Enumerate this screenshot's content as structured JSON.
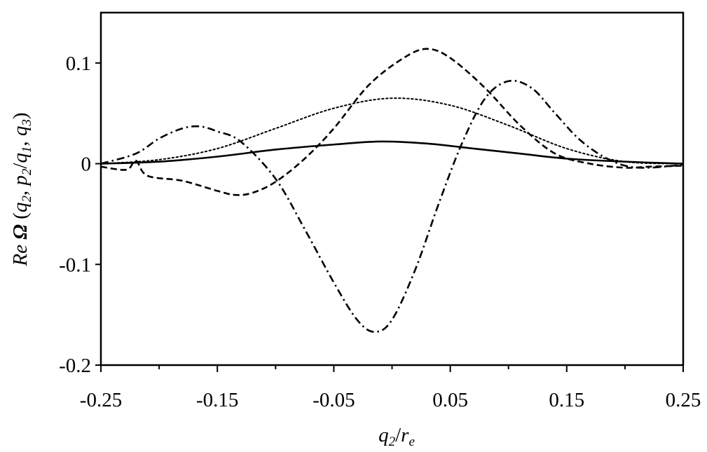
{
  "chart_data": {
    "type": "line",
    "title": "",
    "xlabel": {
      "base": "q",
      "sub": "2",
      "slash": "/",
      "base2": "r",
      "sub2": "e"
    },
    "ylabel": {
      "prefix": "Re ",
      "omega": "Ω",
      "open": " (",
      "q": "q",
      "q_sub": "2",
      "comma1": ", ",
      "p": "p",
      "p_sub": "2",
      "slash": "/",
      "q1": "q",
      "q1_sub": "1",
      "comma2": ", ",
      "q3": "q",
      "q3_sub": "3",
      "close": ")"
    },
    "xlim": [
      -0.25,
      0.25
    ],
    "ylim": [
      -0.2,
      0.15
    ],
    "x_ticks": [
      -0.25,
      -0.15,
      -0.05,
      0.05,
      0.15,
      0.25
    ],
    "x_tick_labels": [
      "-0.25",
      "-0.15",
      "-0.05",
      "0.05",
      "0.15",
      "0.25"
    ],
    "x_minor_ticks": [
      -0.2,
      -0.1,
      0.0,
      0.1,
      0.2
    ],
    "y_ticks": [
      -0.2,
      -0.1,
      0,
      0.1
    ],
    "y_tick_labels": [
      "-0.2",
      "-0.1",
      "0",
      "0.1"
    ],
    "grid": false,
    "legend": "none",
    "series": [
      {
        "style": "solid",
        "points": [
          [
            -0.25,
            0
          ],
          [
            -0.2,
            0.002
          ],
          [
            -0.15,
            0.007
          ],
          [
            -0.1,
            0.014
          ],
          [
            -0.05,
            0.019
          ],
          [
            -0.01,
            0.022
          ],
          [
            0.03,
            0.02
          ],
          [
            0.07,
            0.015
          ],
          [
            0.11,
            0.01
          ],
          [
            0.15,
            0.005
          ],
          [
            0.2,
            0.002
          ],
          [
            0.25,
            0
          ]
        ]
      },
      {
        "style": "dotted",
        "points": [
          [
            -0.25,
            0
          ],
          [
            -0.2,
            0.004
          ],
          [
            -0.15,
            0.015
          ],
          [
            -0.1,
            0.035
          ],
          [
            -0.05,
            0.055
          ],
          [
            0,
            0.065
          ],
          [
            0.05,
            0.058
          ],
          [
            0.1,
            0.038
          ],
          [
            0.15,
            0.015
          ],
          [
            0.2,
            0.002
          ],
          [
            0.25,
            0
          ]
        ]
      },
      {
        "style": "dashed",
        "points": [
          [
            -0.25,
            -0.003
          ],
          [
            -0.228,
            -0.006
          ],
          [
            -0.22,
            0.003
          ],
          [
            -0.21,
            -0.012
          ],
          [
            -0.18,
            -0.017
          ],
          [
            -0.15,
            -0.027
          ],
          [
            -0.135,
            -0.031
          ],
          [
            -0.12,
            -0.029
          ],
          [
            -0.1,
            -0.018
          ],
          [
            -0.075,
            0.005
          ],
          [
            -0.05,
            0.035
          ],
          [
            -0.02,
            0.078
          ],
          [
            0.01,
            0.105
          ],
          [
            0.03,
            0.114
          ],
          [
            0.05,
            0.105
          ],
          [
            0.08,
            0.075
          ],
          [
            0.11,
            0.038
          ],
          [
            0.14,
            0.01
          ],
          [
            0.17,
            0
          ],
          [
            0.2,
            -0.004
          ],
          [
            0.22,
            -0.003
          ],
          [
            0.25,
            -0.002
          ]
        ]
      },
      {
        "style": "dashdot",
        "points": [
          [
            -0.25,
            0
          ],
          [
            -0.22,
            0.01
          ],
          [
            -0.2,
            0.025
          ],
          [
            -0.18,
            0.035
          ],
          [
            -0.165,
            0.037
          ],
          [
            -0.15,
            0.032
          ],
          [
            -0.13,
            0.022
          ],
          [
            -0.1,
            -0.015
          ],
          [
            -0.075,
            -0.065
          ],
          [
            -0.05,
            -0.118
          ],
          [
            -0.03,
            -0.155
          ],
          [
            -0.015,
            -0.167
          ],
          [
            0,
            -0.155
          ],
          [
            0.02,
            -0.105
          ],
          [
            0.04,
            -0.04
          ],
          [
            0.06,
            0.02
          ],
          [
            0.08,
            0.065
          ],
          [
            0.1,
            0.082
          ],
          [
            0.12,
            0.075
          ],
          [
            0.14,
            0.05
          ],
          [
            0.16,
            0.025
          ],
          [
            0.18,
            0.008
          ],
          [
            0.2,
            -0.002
          ],
          [
            0.22,
            -0.004
          ],
          [
            0.25,
            -0.001
          ]
        ]
      }
    ]
  }
}
